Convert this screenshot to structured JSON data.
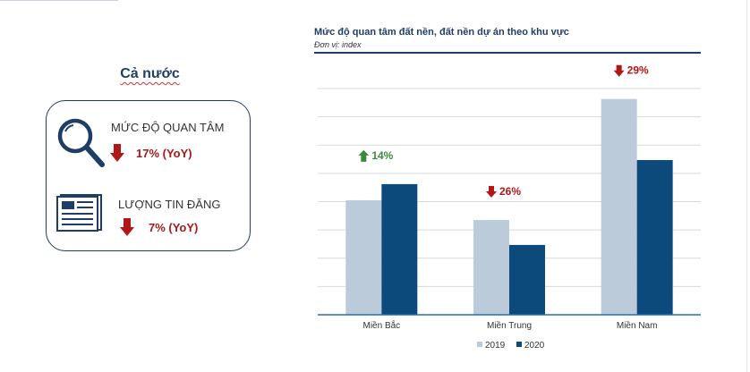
{
  "national": {
    "title": "Cả nước",
    "metrics": [
      {
        "label": "MỨC ĐỘ QUAN TÂM",
        "value": "17% (YoY)",
        "direction": "down",
        "icon": "magnifier-icon"
      },
      {
        "label": "LƯỢNG TIN ĐĂNG",
        "value": "7% (YoY)",
        "direction": "down",
        "icon": "newspaper-icon"
      }
    ]
  },
  "colors": {
    "series_2019": "#bccbd9",
    "series_2020": "#0c4a7c",
    "up": "#3a8a3e",
    "down": "#b01818",
    "navy": "#1f3e66"
  },
  "chart_data": {
    "type": "bar",
    "title": "Mức độ quan tâm đất nền, đất nền dự án theo khu vực",
    "subtitle": "Đơn vị: index",
    "xlabel": "",
    "ylabel": "",
    "categories": [
      "Miền Bắc",
      "Miền Trung",
      "Miền Nam"
    ],
    "series": [
      {
        "name": "2019",
        "values": [
          4.05,
          3.35,
          7.63
        ]
      },
      {
        "name": "2020",
        "values": [
          4.62,
          2.47,
          5.47
        ]
      }
    ],
    "ylim": [
      0,
      8
    ],
    "grid": true,
    "legend": "bottom-center",
    "annotations": [
      {
        "category": "Miền Bắc",
        "text": "14%",
        "direction": "up"
      },
      {
        "category": "Miền Trung",
        "text": "26%",
        "direction": "down"
      },
      {
        "category": "Miền Nam",
        "text": "29%",
        "direction": "down"
      }
    ]
  }
}
